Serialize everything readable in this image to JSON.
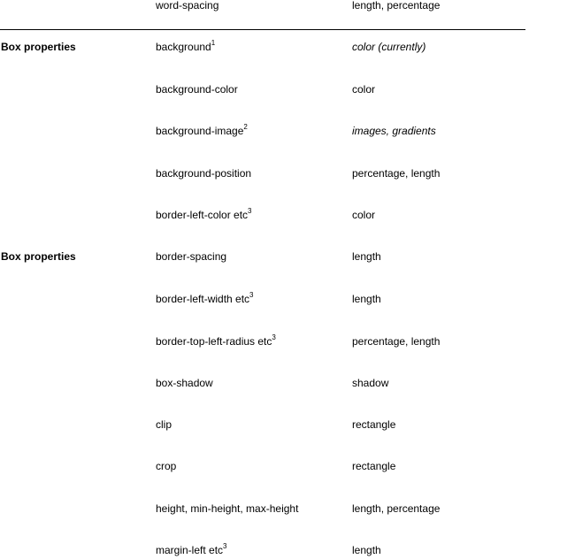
{
  "top_row": {
    "property": "word-spacing",
    "value": "length, percentage"
  },
  "rows": [
    {
      "group": "Box properties",
      "property": "background",
      "note": "1",
      "value": "color (currently)",
      "value_italic": true
    },
    {
      "group": "",
      "property": "background-color",
      "note": "",
      "value": "color",
      "value_italic": false
    },
    {
      "group": "",
      "property": "background-image",
      "note": "2",
      "value": "images, gradients",
      "value_italic": true
    },
    {
      "group": "",
      "property": "background-position",
      "note": "",
      "value": "percentage, length",
      "value_italic": false
    },
    {
      "group": "",
      "property": "border-left-color etc",
      "note": "3",
      "value": "color",
      "value_italic": false
    },
    {
      "group": "Box properties",
      "property": "border-spacing",
      "note": "",
      "value": "length",
      "value_italic": false
    },
    {
      "group": "",
      "property": "border-left-width etc",
      "note": "3",
      "value": "length",
      "value_italic": false
    },
    {
      "group": "",
      "property": "border-top-left-radius etc",
      "note": "3",
      "value": "percentage, length",
      "value_italic": false
    },
    {
      "group": "",
      "property": "box-shadow",
      "note": "",
      "value": "shadow",
      "value_italic": false
    },
    {
      "group": "",
      "property": "clip",
      "note": "",
      "value": "rectangle",
      "value_italic": false
    },
    {
      "group": "",
      "property": "crop",
      "note": "",
      "value": "rectangle",
      "value_italic": false
    },
    {
      "group": "",
      "property": "height, min-height, max-height",
      "note": "",
      "value": "length, percentage",
      "value_italic": false
    },
    {
      "group": "",
      "property": "margin-left etc",
      "note": "3",
      "value": "length",
      "value_italic": false
    }
  ]
}
